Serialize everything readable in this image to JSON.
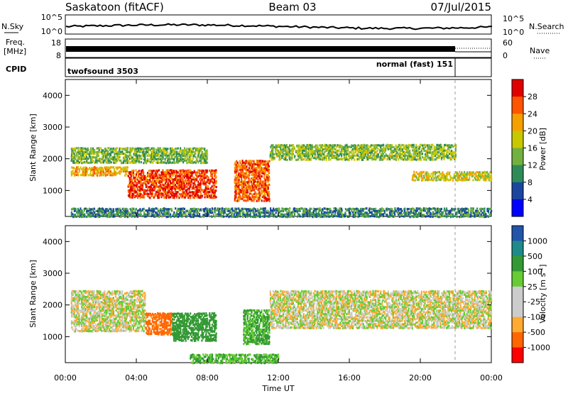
{
  "header": {
    "station": "Saskatoon (fitACF)",
    "beam": "Beam 03",
    "date": "07/Jul/2015"
  },
  "noise_panel": {
    "left_label": "N.Sky",
    "right_label": "N.Search",
    "left_ticks": [
      "10^5",
      "10^0"
    ],
    "right_ticks": [
      "10^5",
      "10^0"
    ]
  },
  "freq_panel": {
    "left_label_line1": "Freq.",
    "left_label_line2": "[MHz]",
    "right_label": "Nave",
    "left_ticks": [
      "18",
      "8"
    ],
    "right_ticks": [
      "60",
      "0"
    ]
  },
  "cpid_panel": {
    "label": "CPID",
    "modes": [
      {
        "name": "twofsound 3503",
        "start_hour": 0,
        "end_hour": 22
      },
      {
        "name": "normal (fast) 151",
        "start_hour": 22,
        "end_hour": 24
      }
    ]
  },
  "colors": {
    "power_scale": [
      "#0000ff",
      "#1a46a0",
      "#2e8b57",
      "#72b040",
      "#c8c800",
      "#f5a000",
      "#ff5500",
      "#e00000"
    ],
    "velocity_scale": [
      "#ff0000",
      "#ff6600",
      "#ffaa33",
      "#cccccc",
      "#cccccc",
      "#66cc33",
      "#339933",
      "#1e8a8a",
      "#2255aa"
    ]
  },
  "chart_data": [
    {
      "type": "heatmap",
      "panel": "power",
      "x_axis": "Time UT",
      "xlabel": "Time UT",
      "x_ticks": [
        "00:00",
        "04:00",
        "08:00",
        "12:00",
        "16:00",
        "20:00",
        "00:00"
      ],
      "xlim_hours": [
        0,
        24
      ],
      "ylabel": "Slant Range [km]",
      "y_ticks": [
        "1000",
        "2000",
        "3000",
        "4000"
      ],
      "ylim": [
        180,
        4500
      ],
      "colorbar_label": "Power [dB]",
      "colorbar_ticks": [
        "4",
        "8",
        "12",
        "16",
        "20",
        "24",
        "28"
      ],
      "clim": [
        0,
        30
      ],
      "bands": [
        {
          "t_start": 0.3,
          "t_end": 3.5,
          "r_start": 1500,
          "r_end": 1800,
          "value": 20
        },
        {
          "t_start": 3.5,
          "t_end": 8.5,
          "r_start": 800,
          "r_end": 1700,
          "value": 26
        },
        {
          "t_start": 0.3,
          "t_end": 8.0,
          "r_start": 1900,
          "r_end": 2400,
          "value": 13
        },
        {
          "t_start": 9.5,
          "t_end": 11.5,
          "r_start": 700,
          "r_end": 2000,
          "value": 24
        },
        {
          "t_start": 11.5,
          "t_end": 22.0,
          "r_start": 2000,
          "r_end": 2500,
          "value": 14
        },
        {
          "t_start": 19.5,
          "t_end": 24.0,
          "r_start": 1350,
          "r_end": 1650,
          "value": 17
        },
        {
          "t_start": 0.3,
          "t_end": 24.0,
          "r_start": 200,
          "r_end": 500,
          "value": 9
        }
      ]
    },
    {
      "type": "heatmap",
      "panel": "velocity",
      "xlabel": "Time UT",
      "x_ticks": [
        "00:00",
        "04:00",
        "08:00",
        "12:00",
        "16:00",
        "20:00",
        "00:00"
      ],
      "xlim_hours": [
        0,
        24
      ],
      "ylabel": "Slant Range [km]",
      "y_ticks": [
        "1000",
        "2000",
        "3000",
        "4000"
      ],
      "ylim": [
        180,
        4500
      ],
      "colorbar_label": "Velocity [m s^-1]",
      "colorbar_ticks": [
        "1000",
        "500",
        "100",
        "25",
        "-25",
        "-100",
        "-500",
        "-1000"
      ],
      "bands": [
        {
          "t_start": 0.3,
          "t_end": 4.5,
          "r_start": 1200,
          "r_end": 2500,
          "value": 0
        },
        {
          "t_start": 4.5,
          "t_end": 6.0,
          "r_start": 1100,
          "r_end": 1800,
          "value": -150
        },
        {
          "t_start": 6.0,
          "t_end": 8.5,
          "r_start": 900,
          "r_end": 1800,
          "value": 200
        },
        {
          "t_start": 10.0,
          "t_end": 11.5,
          "r_start": 800,
          "r_end": 1900,
          "value": 120
        },
        {
          "t_start": 11.5,
          "t_end": 24.0,
          "r_start": 1300,
          "r_end": 2500,
          "value": 0
        },
        {
          "t_start": 7.0,
          "t_end": 12.0,
          "r_start": 200,
          "r_end": 500,
          "value": 100
        }
      ]
    }
  ]
}
